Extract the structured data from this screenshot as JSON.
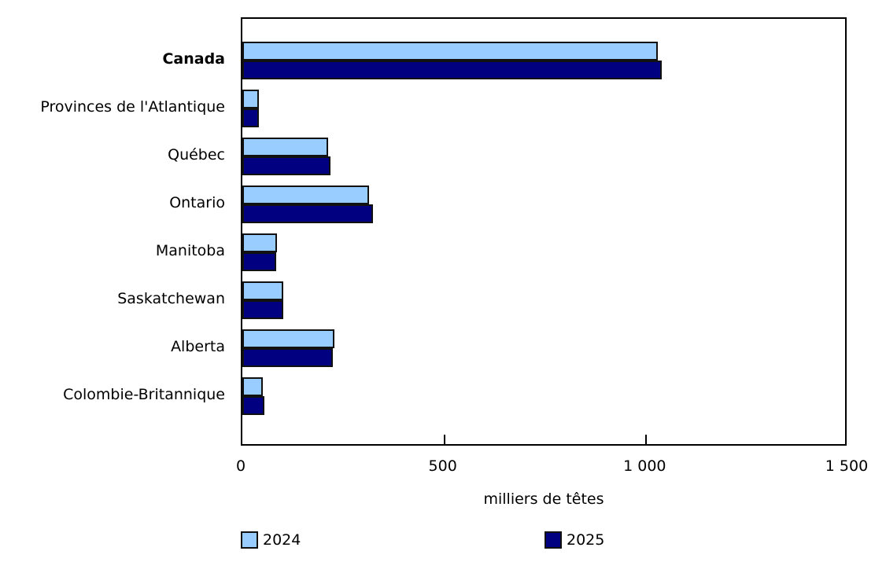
{
  "chart_data": {
    "type": "bar",
    "orientation": "horizontal",
    "title": "",
    "xlabel": "milliers de têtes",
    "ylabel": "",
    "xlim": [
      0,
      1500
    ],
    "xticks": [
      0,
      500,
      1000,
      1500
    ],
    "xtick_labels": [
      "0",
      "500",
      "1 000",
      "1 500"
    ],
    "categories": [
      "Canada",
      "Provinces de l'Atlantique",
      "Québec",
      "Ontario",
      "Manitoba",
      "Saskatchewan",
      "Alberta",
      "Colombie-Britannique"
    ],
    "bold_categories": [
      "Canada"
    ],
    "series": [
      {
        "name": "2024",
        "color": "#99ccff",
        "values": [
          1029,
          41,
          212,
          314,
          86,
          101,
          228,
          51
        ]
      },
      {
        "name": "2025",
        "color": "#000080",
        "values": [
          1038,
          41,
          218,
          323,
          84,
          101,
          224,
          54
        ]
      }
    ],
    "grid": false,
    "legend_position": "bottom"
  }
}
